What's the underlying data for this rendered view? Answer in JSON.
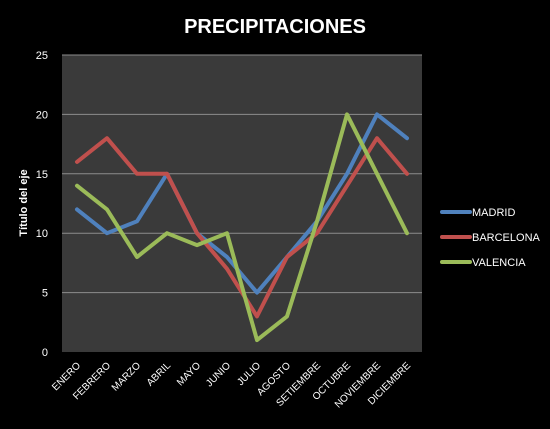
{
  "chart_data": {
    "type": "line",
    "title": "PRECIPITACIONES",
    "xlabel": "",
    "ylabel": "Título del eje",
    "ylim": [
      0,
      25
    ],
    "yticks": [
      0,
      5,
      10,
      15,
      20,
      25
    ],
    "grid": true,
    "legend_position": "right",
    "categories": [
      "ENERO",
      "FEBRERO",
      "MARZO",
      "ABRIL",
      "MAYO",
      "JUNIO",
      "JULIO",
      "AGOSTO",
      "SETIEMBRE",
      "OCTUBRE",
      "NOVIEMBRE",
      "DICIEMBRE"
    ],
    "series": [
      {
        "name": "MADRID",
        "color": "#4f81bd",
        "values": [
          12,
          10,
          11,
          15,
          10,
          8,
          5,
          8,
          11,
          15,
          20,
          18
        ]
      },
      {
        "name": "BARCELONA",
        "color": "#c0504d",
        "values": [
          16,
          18,
          15,
          15,
          10,
          7,
          3,
          8,
          10,
          14,
          18,
          15
        ]
      },
      {
        "name": "VALENCIA",
        "color": "#9bbb59",
        "values": [
          14,
          12,
          8,
          10,
          9,
          10,
          1,
          3,
          11,
          20,
          15,
          10
        ]
      }
    ]
  },
  "colors": {
    "background": "#000000",
    "plot_area": "#3a3a3a",
    "gridline": "#8c8c8c",
    "text": "#ffffff"
  }
}
